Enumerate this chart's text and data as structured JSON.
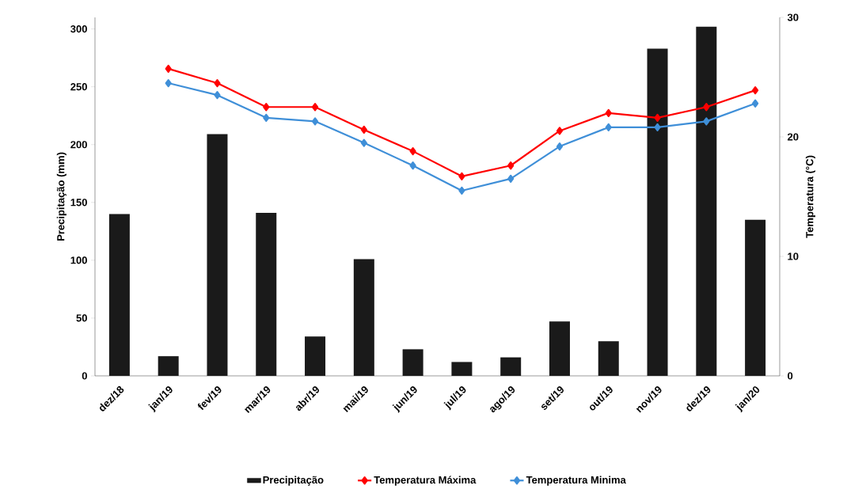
{
  "chart_data": {
    "type": "bar",
    "ylabel": "Precipitação (mm)",
    "y2label": "Temperatura (°C)",
    "categories": [
      "dez/18",
      "jan/19",
      "fev/19",
      "mar/19",
      "abr/19",
      "mai/19",
      "jun/19",
      "jul/19",
      "ago/19",
      "set/19",
      "out/19",
      "nov/19",
      "dez/19",
      "jan/20"
    ],
    "series": [
      {
        "name": "Precipitação",
        "color": "#1a1a1a",
        "values": [
          140,
          17,
          209,
          141,
          34,
          101,
          23,
          12,
          16,
          47,
          30,
          283,
          302,
          135
        ]
      },
      {
        "name": "Temperatura Máxima",
        "type": "line",
        "axis": "y2",
        "color": "#ff0000",
        "values": [
          null,
          25.7,
          24.5,
          22.5,
          22.5,
          20.6,
          18.8,
          16.7,
          17.6,
          20.5,
          22.0,
          21.6,
          22.5,
          23.9
        ]
      },
      {
        "name": "Temperatura Minima",
        "type": "line",
        "axis": "y2",
        "color": "#3f8fd8",
        "values": [
          null,
          24.5,
          23.5,
          21.6,
          21.3,
          19.5,
          17.6,
          15.5,
          16.5,
          19.2,
          20.8,
          20.8,
          21.3,
          22.8
        ]
      }
    ],
    "ylim": [
      0,
      310
    ],
    "yticks": [
      0,
      50,
      100,
      150,
      200,
      250,
      300
    ],
    "y2lim": [
      0,
      30
    ],
    "y2ticks": [
      0,
      10,
      20,
      30
    ],
    "marker": "diamond",
    "line_style": "solid",
    "legend": "bottom",
    "grid": false
  }
}
